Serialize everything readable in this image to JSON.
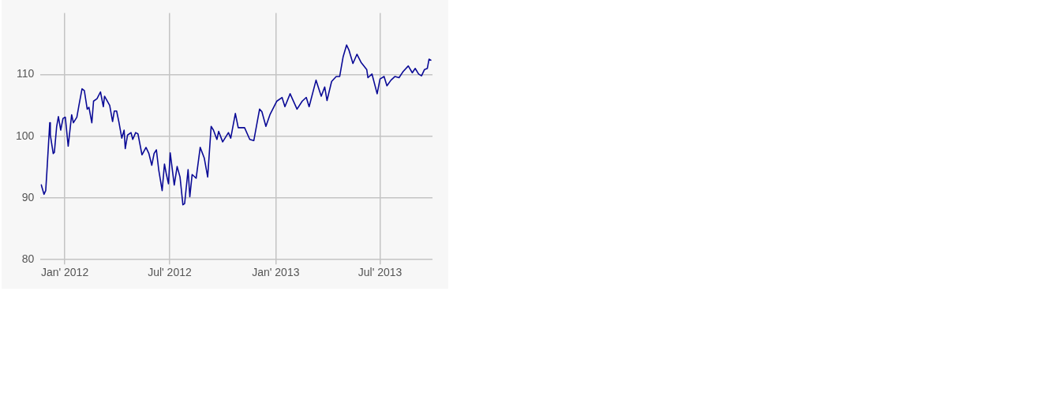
{
  "chart_data": {
    "type": "line",
    "x": [
      "2011-11-21",
      "2011-11-26",
      "2011-11-29",
      "2011-12-01",
      "2011-12-06",
      "2011-12-07",
      "2011-12-12",
      "2011-12-14",
      "2011-12-18",
      "2011-12-21",
      "2011-12-25",
      "2011-12-29",
      "2012-01-02",
      "2012-01-07",
      "2012-01-13",
      "2012-01-16",
      "2012-01-22",
      "2012-01-26",
      "2012-01-31",
      "2012-02-04",
      "2012-02-09",
      "2012-02-12",
      "2012-02-17",
      "2012-02-20",
      "2012-02-26",
      "2012-03-03",
      "2012-03-08",
      "2012-03-10",
      "2012-03-19",
      "2012-03-24",
      "2012-03-27",
      "2012-03-31",
      "2012-04-04",
      "2012-04-09",
      "2012-04-13",
      "2012-04-15",
      "2012-04-19",
      "2012-04-25",
      "2012-04-28",
      "2012-05-03",
      "2012-05-07",
      "2012-05-14",
      "2012-05-21",
      "2012-05-26",
      "2012-05-31",
      "2012-06-04",
      "2012-06-08",
      "2012-06-12",
      "2012-06-18",
      "2012-06-22",
      "2012-06-25",
      "2012-06-29",
      "2012-07-02",
      "2012-07-09",
      "2012-07-14",
      "2012-07-19",
      "2012-07-24",
      "2012-07-27",
      "2012-08-02",
      "2012-08-05",
      "2012-08-09",
      "2012-08-16",
      "2012-08-23",
      "2012-08-30",
      "2012-09-05",
      "2012-09-11",
      "2012-09-15",
      "2012-09-21",
      "2012-09-24",
      "2012-10-01",
      "2012-10-11",
      "2012-10-15",
      "2012-10-23",
      "2012-10-28",
      "2012-11-08",
      "2012-11-17",
      "2012-11-24",
      "2012-12-04",
      "2012-12-08",
      "2012-12-15",
      "2012-12-22",
      "2013-01-03",
      "2013-01-12",
      "2013-01-17",
      "2013-01-26",
      "2013-02-07",
      "2013-02-16",
      "2013-02-23",
      "2013-02-28",
      "2013-03-12",
      "2013-03-21",
      "2013-03-27",
      "2013-03-31",
      "2013-04-08",
      "2013-04-16",
      "2013-04-22",
      "2013-04-28",
      "2013-05-04",
      "2013-05-08",
      "2013-05-15",
      "2013-05-22",
      "2013-05-29",
      "2013-06-08",
      "2013-06-10",
      "2013-06-17",
      "2013-06-26",
      "2013-07-01",
      "2013-07-08",
      "2013-07-13",
      "2013-07-20",
      "2013-07-27",
      "2013-08-03",
      "2013-08-10",
      "2013-08-19",
      "2013-08-26",
      "2013-08-31",
      "2013-09-06",
      "2013-09-11",
      "2013-09-16",
      "2013-09-21",
      "2013-09-24",
      "2013-09-28"
    ],
    "series": [
      {
        "color": "#0a0a96",
        "values": [
          92.2,
          90.6,
          91.2,
          94.2,
          102.2,
          100.2,
          97.2,
          97.4,
          101.6,
          103.2,
          101,
          102.9,
          103.1,
          98.4,
          103.5,
          102.2,
          103.1,
          105.2,
          107.7,
          107.4,
          104.4,
          104.7,
          102.2,
          105.7,
          106.1,
          107.2,
          104.8,
          106.5,
          105,
          102.4,
          104.1,
          104.1,
          102.3,
          99.7,
          101,
          98,
          100.2,
          100.6,
          99.5,
          100.6,
          100.4,
          97,
          98.2,
          97.2,
          95.3,
          97.2,
          97.8,
          94.6,
          91.2,
          95.5,
          94,
          92.3,
          97.3,
          92.1,
          95.1,
          93.4,
          88.9,
          89.1,
          94.6,
          90.2,
          93.8,
          93.2,
          98.2,
          96.5,
          93.4,
          101.6,
          101,
          99.5,
          100.8,
          99.1,
          100.6,
          99.7,
          103.7,
          101.4,
          101.4,
          99.5,
          99.3,
          104.4,
          104,
          101.6,
          103.5,
          105.7,
          106.3,
          104.8,
          106.9,
          104.4,
          105.7,
          106.3,
          104.8,
          109.1,
          106.5,
          108,
          105.8,
          108.9,
          109.7,
          109.7,
          112.9,
          114.8,
          114,
          111.8,
          113.3,
          112,
          110.8,
          109.5,
          110.1,
          106.9,
          109.3,
          109.7,
          108.2,
          109.1,
          109.7,
          109.5,
          110.5,
          111.4,
          110.3,
          111,
          110.1,
          109.8,
          110.8,
          111,
          112.5,
          112.3
        ]
      }
    ],
    "xlim": [
      "2011-11-20",
      "2013-09-30"
    ],
    "xticks": [
      {
        "value": "2012-01-01",
        "label": "Jan' 2012"
      },
      {
        "value": "2012-07-01",
        "label": "Jul' 2012"
      },
      {
        "value": "2013-01-01",
        "label": "Jan' 2013"
      },
      {
        "value": "2013-07-01",
        "label": "Jul' 2013"
      }
    ],
    "ylim": [
      80,
      120
    ],
    "yticks": [
      80,
      90,
      100,
      110
    ],
    "grid": true,
    "marker": "none",
    "line_style": "solid"
  }
}
